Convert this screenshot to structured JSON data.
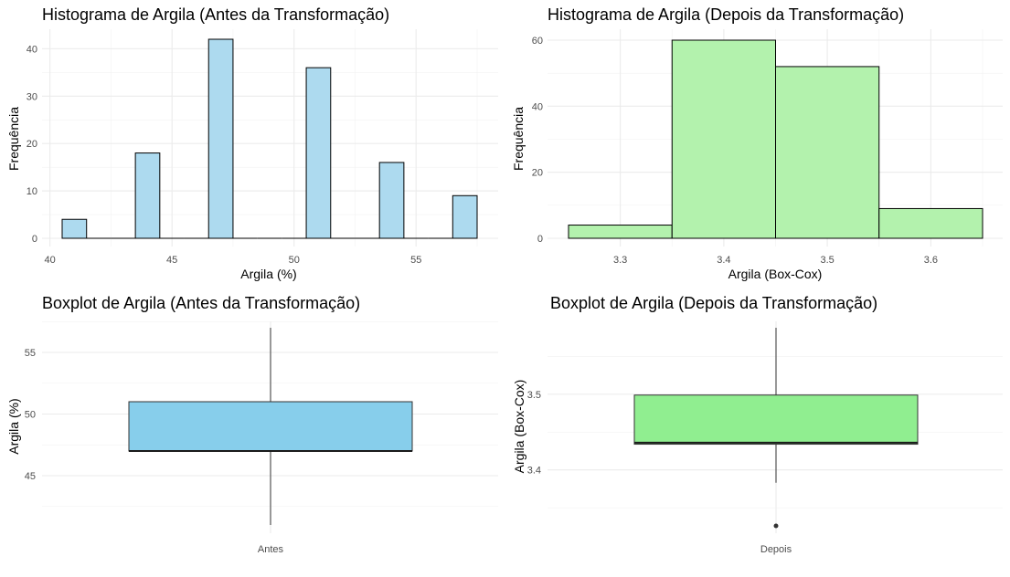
{
  "chart_data": [
    {
      "type": "bar",
      "subtype": "histogram",
      "title": "Histograma de Argila (Antes da Transformação)",
      "xlabel": "Argila (%)",
      "ylabel": "Frequência",
      "fill": "#ADDAEF",
      "bin_width": 1,
      "bins": [
        {
          "x0": 40.5,
          "x1": 41.5,
          "count": 4
        },
        {
          "x0": 43.5,
          "x1": 44.5,
          "count": 18
        },
        {
          "x0": 46.5,
          "x1": 47.5,
          "count": 42
        },
        {
          "x0": 50.5,
          "x1": 51.5,
          "count": 36
        },
        {
          "x0": 53.5,
          "x1": 54.5,
          "count": 16
        },
        {
          "x0": 56.5,
          "x1": 57.5,
          "count": 9
        }
      ],
      "xlim": [
        40.5,
        57.5
      ],
      "ylim": [
        0,
        42
      ],
      "xticks": [
        40,
        45,
        50,
        55
      ],
      "yticks": [
        0,
        10,
        20,
        30,
        40
      ],
      "grid": true
    },
    {
      "type": "bar",
      "subtype": "histogram",
      "title": "Histograma de Argila (Depois da Transformação)",
      "xlabel": "Argila (Box-Cox)",
      "ylabel": "Frequência",
      "fill": "#B3F2AD",
      "bin_width": 0.1,
      "bins": [
        {
          "x0": 3.25,
          "x1": 3.35,
          "count": 4
        },
        {
          "x0": 3.35,
          "x1": 3.45,
          "count": 60
        },
        {
          "x0": 3.45,
          "x1": 3.55,
          "count": 52
        },
        {
          "x0": 3.55,
          "x1": 3.65,
          "count": 9
        }
      ],
      "xlim": [
        3.25,
        3.65
      ],
      "ylim": [
        0,
        60
      ],
      "xticks": [
        3.3,
        3.4,
        3.5,
        3.6
      ],
      "yticks": [
        0,
        20,
        40,
        60
      ],
      "grid": true
    },
    {
      "type": "boxplot",
      "title": "Boxplot de Argila (Antes da Transformação)",
      "xlabel": "",
      "ylabel": "Argila (%)",
      "fill": "#87CEEB",
      "categories": [
        "Antes"
      ],
      "stats": {
        "min": 41,
        "q1": 47,
        "median": 47,
        "q3": 51,
        "max": 57
      },
      "outliers": [],
      "ylim": [
        41,
        57
      ],
      "yticks": [
        45,
        50,
        55
      ],
      "grid": true
    },
    {
      "type": "boxplot",
      "title": "Boxplot de Argila (Depois da Transformação)",
      "xlabel": "",
      "ylabel": "Argila (Box-Cox)",
      "fill": "#90EE90",
      "categories": [
        "Depois"
      ],
      "stats": {
        "min": 3.383,
        "q1": 3.434,
        "median": 3.436,
        "q3": 3.499,
        "max": 3.588
      },
      "outliers": [
        3.326
      ],
      "ylim": [
        3.326,
        3.588
      ],
      "yticks": [
        3.4,
        3.5
      ],
      "grid": true
    }
  ]
}
